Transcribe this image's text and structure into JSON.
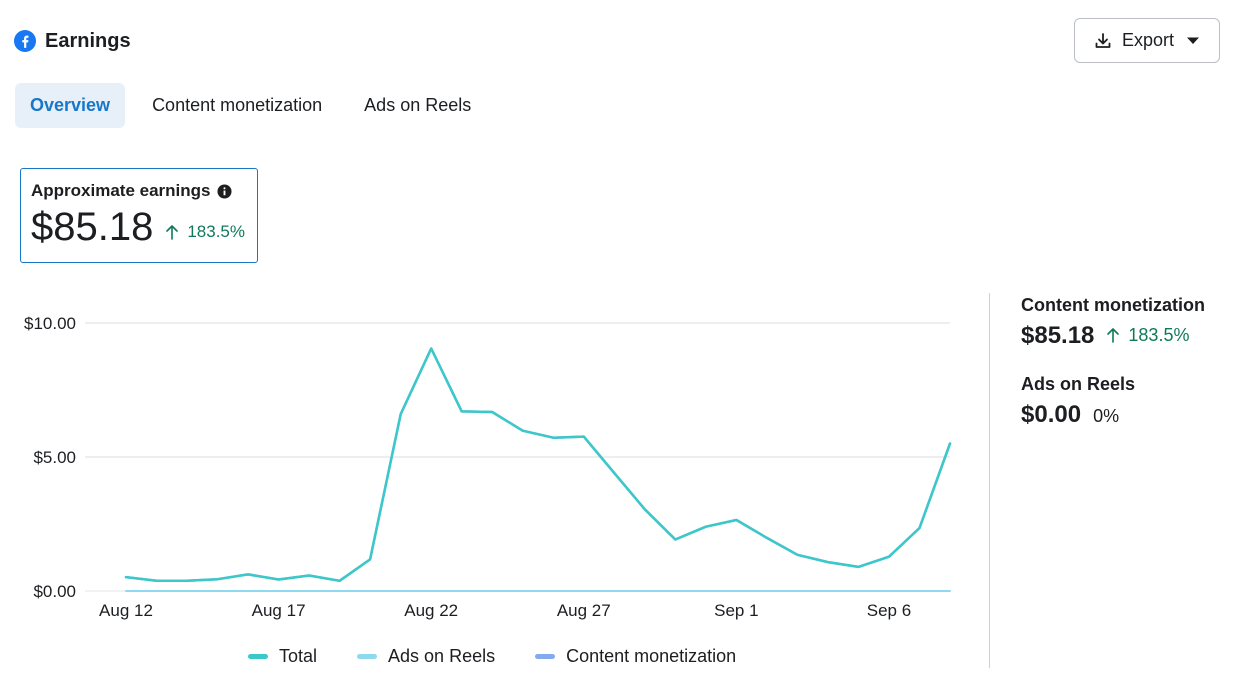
{
  "header": {
    "title": "Earnings",
    "icon": "facebook-logo-icon"
  },
  "export_button": {
    "label": "Export",
    "icon": "download-icon",
    "caret": "caret-down-icon"
  },
  "tabs": [
    {
      "label": "Overview",
      "active": true
    },
    {
      "label": "Content monetization",
      "active": false
    },
    {
      "label": "Ads on Reels",
      "active": false
    }
  ],
  "summary_card": {
    "label": "Approximate earnings",
    "info_icon": "info-icon",
    "value": "$85.18",
    "change": "183.5%"
  },
  "side_panel": {
    "content_monetization": {
      "label": "Content monetization",
      "value": "$85.18",
      "change": "183.5%"
    },
    "ads_on_reels": {
      "label": "Ads on Reels",
      "value": "$0.00",
      "change": "0%"
    }
  },
  "colors": {
    "total": "#3bc8c8",
    "ads_on_reels": "#8fd9f0",
    "content_monetization": "#85a9ee",
    "accent": "#1877c9",
    "positive": "#0f7a5a"
  },
  "chart_data": {
    "type": "line",
    "x": [
      "Aug 12",
      "Aug 13",
      "Aug 14",
      "Aug 15",
      "Aug 16",
      "Aug 17",
      "Aug 18",
      "Aug 19",
      "Aug 20",
      "Aug 21",
      "Aug 22",
      "Aug 23",
      "Aug 24",
      "Aug 25",
      "Aug 26",
      "Aug 27",
      "Aug 28",
      "Aug 29",
      "Aug 30",
      "Aug 31",
      "Sep 1",
      "Sep 2",
      "Sep 3",
      "Sep 4",
      "Sep 5",
      "Sep 6",
      "Sep 7",
      "Sep 8"
    ],
    "x_ticks": [
      "Aug 12",
      "Aug 17",
      "Aug 22",
      "Aug 27",
      "Sep 1",
      "Sep 6"
    ],
    "y_ticks": [
      "$0.00",
      "$5.00",
      "$10.00"
    ],
    "ylim": [
      0,
      10
    ],
    "series": [
      {
        "name": "Total",
        "values": [
          0.52,
          0.38,
          0.38,
          0.44,
          0.62,
          0.43,
          0.58,
          0.38,
          1.18,
          6.6,
          9.05,
          6.7,
          6.68,
          5.98,
          5.72,
          5.76,
          4.4,
          3.05,
          1.92,
          2.4,
          2.65,
          1.98,
          1.35,
          1.08,
          0.9,
          1.28,
          2.35,
          5.5
        ]
      },
      {
        "name": "Ads on Reels",
        "values": [
          0,
          0,
          0,
          0,
          0,
          0,
          0,
          0,
          0,
          0,
          0,
          0,
          0,
          0,
          0,
          0,
          0,
          0,
          0,
          0,
          0,
          0,
          0,
          0,
          0,
          0,
          0,
          0
        ]
      },
      {
        "name": "Content monetization",
        "values": [
          0.52,
          0.38,
          0.38,
          0.44,
          0.62,
          0.43,
          0.58,
          0.38,
          1.18,
          6.6,
          9.05,
          6.7,
          6.68,
          5.98,
          5.72,
          5.76,
          4.4,
          3.05,
          1.92,
          2.4,
          2.65,
          1.98,
          1.35,
          1.08,
          0.9,
          1.28,
          2.35,
          5.5
        ]
      }
    ],
    "grid": true,
    "legend_position": "bottom"
  }
}
